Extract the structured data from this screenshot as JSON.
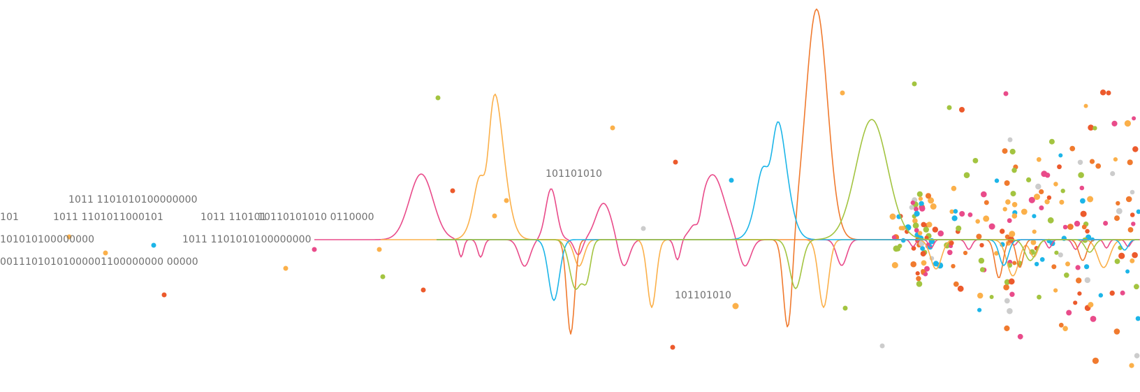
{
  "binary_labels": {
    "row1": "1011 1101010100000000",
    "row2_a": "101",
    "row2_b": "1011 110101",
    "row2_c": "1000101",
    "row2_d": "1011 110101",
    "row2_e": "10110101010 0110000",
    "row3_a": "101010100000000",
    "row3_b": "1011 1101010100000000",
    "row4": "00111010101000001100000000 00000",
    "center_upper": "101101010",
    "center_lower": "101101010"
  },
  "colors": {
    "pink": "#e94b8a",
    "light_orange": "#fbb04a",
    "orange": "#f07a2e",
    "blue": "#1cb5e8",
    "green": "#a3c440",
    "red_orange": "#ec5a2c",
    "gray": "#cccccc",
    "text": "#6f6f6f"
  }
}
